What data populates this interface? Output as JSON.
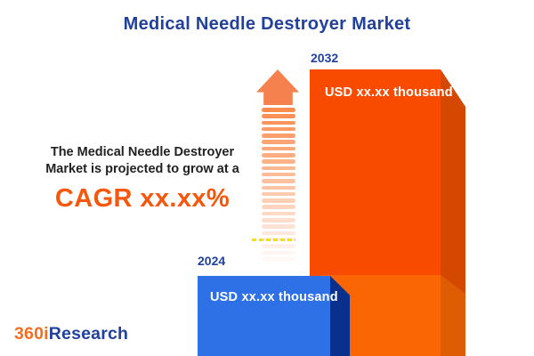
{
  "title": "Medical Needle Destroyer Market",
  "annotation": {
    "line1": "The Medical Needle Destroyer",
    "line2": "Market is projected to grow at a",
    "cagr": "CAGR xx.xx%"
  },
  "bars": [
    {
      "year": "2024",
      "value_label": "USD xx.xx thousand"
    },
    {
      "year": "2032",
      "value_label": "USD xx.xx thousand"
    }
  ],
  "logo": {
    "part1": "360i",
    "part2": "Research"
  },
  "colors": {
    "title_blue": "#21419C",
    "cagr_orange": "#F5570D",
    "bar_2024_front": "#2E71E7",
    "bar_2024_side": "#08308C",
    "bar_2032_front": "#F94B00",
    "bar_2032_side": "#D54802",
    "bar_2032_segment_front": "#FB6604",
    "bar_2032_segment_side": "#DF5D02",
    "arrow_orange": "#F4814E",
    "dash_yellow": "#F3E400"
  },
  "chart_data": {
    "type": "bar",
    "title": "Medical Needle Destroyer Market",
    "categories": [
      "2024",
      "2032"
    ],
    "values": [
      null,
      null
    ],
    "value_labels": [
      "USD xx.xx thousand",
      "USD xx.xx thousand"
    ],
    "unit": "USD thousand",
    "annotation": "The Medical Needle Destroyer Market is projected to grow at a CAGR xx.xx%",
    "bar_colors": [
      "#2E71E7",
      "#F94B00"
    ],
    "bar_side_colors": [
      "#08308C",
      "#D54802"
    ],
    "legend": false,
    "grid": false,
    "orientation": "vertical",
    "style": "3d-cuboid-infographic"
  }
}
